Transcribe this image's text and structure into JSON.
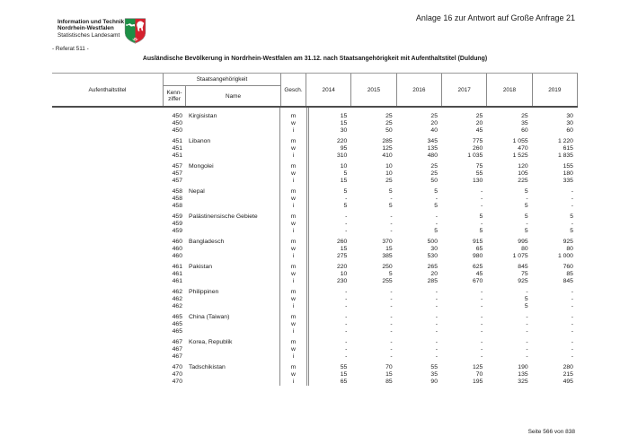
{
  "page": {
    "agency": {
      "line1": "Information und Technik",
      "line2": "Nordrhein-Westfalen",
      "line3": "Statistisches Landesamt"
    },
    "referat": "- Referat 511 -",
    "annex_note": "Anlage 16 zur Antwort auf Große Anfrage 21",
    "footer_page": "Seite 566 von 838",
    "logo": "nrw-coat-of-arms",
    "logo_colors": {
      "green": "#1d9046",
      "red": "#d5212e",
      "white": "#ffffff"
    }
  },
  "table": {
    "title": "Ausländische Bevölkerung in Nordrhein-Westfalen am 31.12. nach Staatsangehörigkeit mit Aufenthaltstitel (Duldung)",
    "headers": {
      "aufenthaltstitel": "Aufenthaltstitel",
      "staatsangehoerigkeit": "Staatsangehörigkeit",
      "kennziffer_line1": "Kenn-",
      "kennziffer_line2": "ziffer",
      "name": "Name",
      "geschlecht": "Gesch.",
      "years": [
        "2014",
        "2015",
        "2016",
        "2017",
        "2018",
        "2019"
      ]
    },
    "groups": [
      {
        "code": "450",
        "name": "Kirgisistan",
        "rows": [
          {
            "sex": "m",
            "values": [
              "15",
              "25",
              "25",
              "25",
              "25",
              "30"
            ]
          },
          {
            "sex": "w",
            "values": [
              "15",
              "25",
              "20",
              "20",
              "35",
              "30"
            ]
          },
          {
            "sex": "i",
            "values": [
              "30",
              "50",
              "40",
              "45",
              "60",
              "60"
            ]
          }
        ]
      },
      {
        "code": "451",
        "name": "Libanon",
        "rows": [
          {
            "sex": "m",
            "values": [
              "220",
              "285",
              "345",
              "775",
              "1 055",
              "1 220"
            ]
          },
          {
            "sex": "w",
            "values": [
              "95",
              "125",
              "135",
              "260",
              "470",
              "615"
            ]
          },
          {
            "sex": "i",
            "values": [
              "310",
              "410",
              "480",
              "1 035",
              "1 525",
              "1 835"
            ]
          }
        ]
      },
      {
        "code": "457",
        "name": "Mongolei",
        "rows": [
          {
            "sex": "m",
            "values": [
              "10",
              "10",
              "25",
              "75",
              "120",
              "155"
            ]
          },
          {
            "sex": "w",
            "values": [
              "5",
              "10",
              "25",
              "55",
              "105",
              "180"
            ]
          },
          {
            "sex": "i",
            "values": [
              "15",
              "25",
              "50",
              "130",
              "225",
              "335"
            ]
          }
        ]
      },
      {
        "code": "458",
        "name": "Nepal",
        "rows": [
          {
            "sex": "m",
            "values": [
              "5",
              "5",
              "5",
              "-",
              "5",
              "-"
            ]
          },
          {
            "sex": "w",
            "values": [
              "-",
              "-",
              "-",
              "-",
              "-",
              "-"
            ]
          },
          {
            "sex": "i",
            "values": [
              "5",
              "5",
              "5",
              "-",
              "5",
              "-"
            ]
          }
        ]
      },
      {
        "code": "459",
        "name": "Palästinensische Gebiete",
        "rows": [
          {
            "sex": "m",
            "values": [
              "-",
              "-",
              "-",
              "5",
              "5",
              "5"
            ]
          },
          {
            "sex": "w",
            "values": [
              "-",
              "-",
              "-",
              "-",
              "-",
              "-"
            ]
          },
          {
            "sex": "i",
            "values": [
              "-",
              "-",
              "5",
              "5",
              "5",
              "5"
            ]
          }
        ]
      },
      {
        "code": "460",
        "name": "Bangladesch",
        "rows": [
          {
            "sex": "m",
            "values": [
              "260",
              "370",
              "500",
              "915",
              "995",
              "925"
            ]
          },
          {
            "sex": "w",
            "values": [
              "15",
              "15",
              "30",
              "65",
              "80",
              "80"
            ]
          },
          {
            "sex": "i",
            "values": [
              "275",
              "385",
              "530",
              "980",
              "1 075",
              "1 000"
            ]
          }
        ]
      },
      {
        "code": "461",
        "name": "Pakistan",
        "rows": [
          {
            "sex": "m",
            "values": [
              "220",
              "250",
              "265",
              "625",
              "845",
              "760"
            ]
          },
          {
            "sex": "w",
            "values": [
              "10",
              "5",
              "20",
              "45",
              "75",
              "85"
            ]
          },
          {
            "sex": "i",
            "values": [
              "230",
              "255",
              "285",
              "670",
              "925",
              "845"
            ]
          }
        ]
      },
      {
        "code": "462",
        "name": "Philippinen",
        "rows": [
          {
            "sex": "m",
            "values": [
              "-",
              "-",
              "-",
              "-",
              "-",
              "-"
            ]
          },
          {
            "sex": "w",
            "values": [
              "-",
              "-",
              "-",
              "-",
              "5",
              "-"
            ]
          },
          {
            "sex": "i",
            "values": [
              "-",
              "-",
              "-",
              "-",
              "5",
              "-"
            ]
          }
        ]
      },
      {
        "code": "465",
        "name": "China (Taiwan)",
        "rows": [
          {
            "sex": "m",
            "values": [
              "-",
              "-",
              "-",
              "-",
              "-",
              "-"
            ]
          },
          {
            "sex": "w",
            "values": [
              "-",
              "-",
              "-",
              "-",
              "-",
              "-"
            ]
          },
          {
            "sex": "i",
            "values": [
              "-",
              "-",
              "-",
              "-",
              "-",
              "-"
            ]
          }
        ]
      },
      {
        "code": "467",
        "name": "Korea, Republik",
        "rows": [
          {
            "sex": "m",
            "values": [
              "-",
              "-",
              "-",
              "-",
              "-",
              "-"
            ]
          },
          {
            "sex": "w",
            "values": [
              "-",
              "-",
              "-",
              "-",
              "-",
              "-"
            ]
          },
          {
            "sex": "i",
            "values": [
              "-",
              "-",
              "-",
              "-",
              "-",
              "-"
            ]
          }
        ]
      },
      {
        "code": "470",
        "name": "Tadschikistan",
        "rows": [
          {
            "sex": "m",
            "values": [
              "55",
              "70",
              "55",
              "125",
              "190",
              "280"
            ]
          },
          {
            "sex": "w",
            "values": [
              "15",
              "15",
              "35",
              "70",
              "135",
              "215"
            ]
          },
          {
            "sex": "i",
            "values": [
              "65",
              "85",
              "90",
              "195",
              "325",
              "495"
            ]
          }
        ]
      }
    ]
  }
}
